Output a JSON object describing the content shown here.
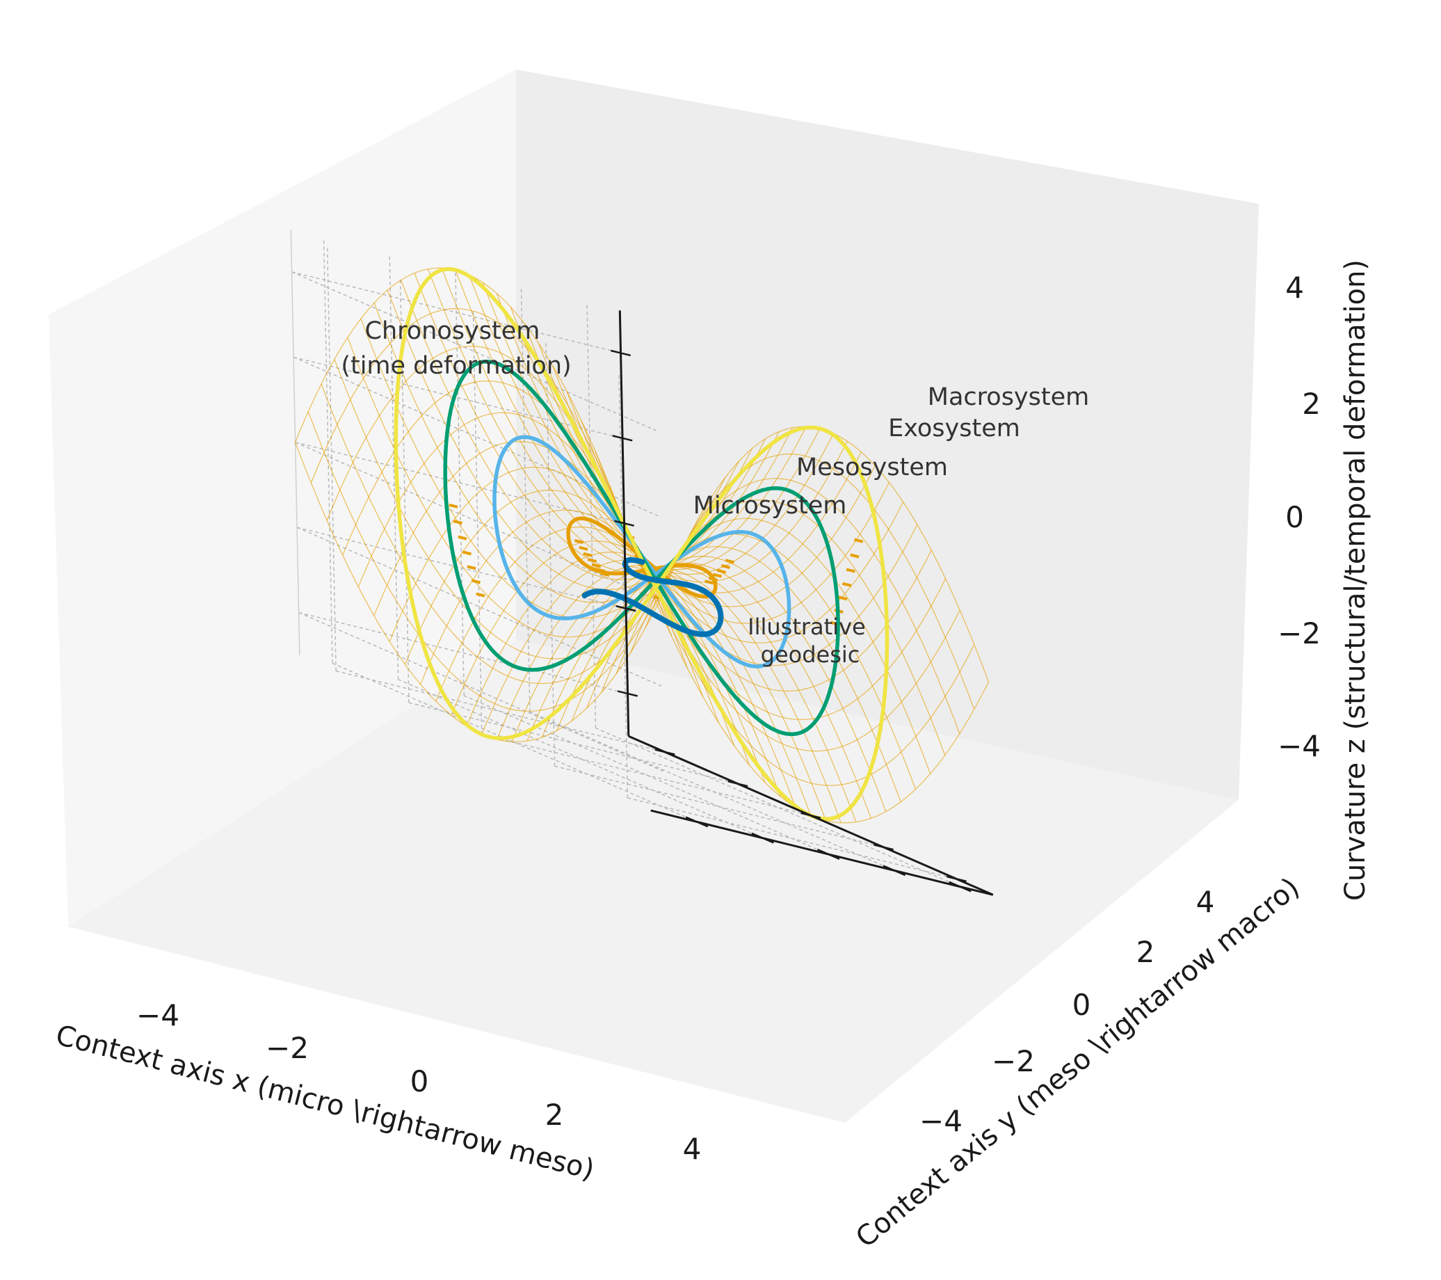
{
  "chart_data": {
    "type": "surface3d",
    "title": "",
    "xlabel": "Context axis x (micro \\rightarrow meso)",
    "ylabel": "Context axis y (meso \\rightarrow macro)",
    "zlabel": "Curvature z (structural/temporal deformation)",
    "xlim": [
      -5,
      5
    ],
    "ylim": [
      -5,
      5
    ],
    "zlim": [
      -5,
      5
    ],
    "x_ticks": [
      "−4",
      "−2",
      "0",
      "2",
      "4"
    ],
    "y_ticks": [
      "−4",
      "−2",
      "0",
      "2",
      "4"
    ],
    "z_ticks": [
      "−4",
      "−2",
      "0",
      "2",
      "4"
    ],
    "surface": {
      "formula": "z = 0.2*(y^2 - x^2)",
      "color": "#E69F00",
      "grid": "wireframe"
    },
    "series": [
      {
        "name": "Microsystem",
        "radius": 1.5,
        "color": "#E69F00"
      },
      {
        "name": "Mesosystem",
        "radius": 3.0,
        "color": "#56B4E9"
      },
      {
        "name": "Exosystem",
        "radius": 4.0,
        "color": "#009E73"
      },
      {
        "name": "Macrosystem",
        "radius": 5.0,
        "color": "#F0E442"
      },
      {
        "name": "Illustrative geodesic",
        "color": "#0072B2"
      }
    ],
    "annotations": [
      {
        "id": "chrono",
        "lines": [
          "Chronosystem",
          "(time deformation)"
        ]
      },
      {
        "id": "macro",
        "lines": [
          "Macrosystem"
        ]
      },
      {
        "id": "exo",
        "lines": [
          "Exosystem"
        ]
      },
      {
        "id": "meso",
        "lines": [
          "Mesosystem"
        ]
      },
      {
        "id": "micro",
        "lines": [
          "Microsystem"
        ]
      },
      {
        "id": "geodesic",
        "lines": [
          "Illustrative",
          "geodesic"
        ]
      }
    ]
  }
}
